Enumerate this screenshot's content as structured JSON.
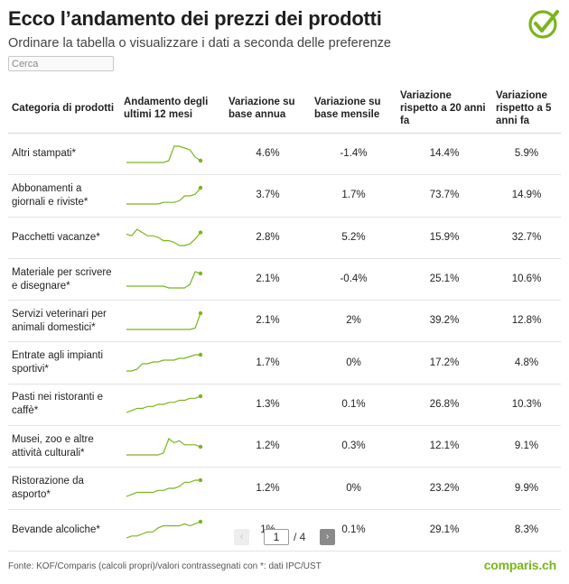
{
  "header": {
    "title": "Ecco l’andamento dei prezzi dei prodotti",
    "subtitle": "Ordinare la tabella o visualizzare i dati a seconda delle preferenze"
  },
  "search": {
    "placeholder": "Cerca",
    "value": ""
  },
  "accent_color": "#7ab51d",
  "logo_icon": "check-circle-icon",
  "table": {
    "columns": [
      "Categoria di prodotti",
      "Andamento degli ultimi 12 mesi",
      "Variazione su base annua",
      "Variazione su base mensile",
      "Variazione rispetto a 20 anni fa",
      "Variazione rispetto a 5 anni fa"
    ],
    "rows": [
      {
        "category": "Altri stampati*",
        "yoy": "4.6%",
        "mom": "-1.4%",
        "y20": "14.4%",
        "y5": "5.9%",
        "trend": [
          10,
          10,
          10,
          10,
          10,
          10,
          10,
          10,
          11,
          19,
          19,
          18,
          17,
          13,
          11
        ]
      },
      {
        "category": "Abbonamenti a giornali e riviste*",
        "yoy": "3.7%",
        "mom": "1.7%",
        "y20": "73.7%",
        "y5": "14.9%",
        "trend": [
          10,
          10,
          10,
          10,
          10,
          10,
          10,
          11,
          11,
          11,
          12,
          15,
          15,
          16,
          20
        ]
      },
      {
        "category": "Pacchetti vacanze*",
        "yoy": "2.8%",
        "mom": "5.2%",
        "y20": "15.9%",
        "y5": "32.7%",
        "trend": [
          16,
          15,
          19,
          17,
          15,
          15,
          14,
          12,
          12,
          11,
          9,
          9,
          10,
          13,
          17
        ]
      },
      {
        "category": "Materiale per scrivere e disegnare*",
        "yoy": "2.1%",
        "mom": "-0.4%",
        "y20": "25.1%",
        "y5": "10.6%",
        "trend": [
          10,
          10,
          10,
          10,
          10,
          10,
          10,
          10,
          9,
          9,
          9,
          9,
          11,
          18,
          17
        ]
      },
      {
        "category": "Servizi veterinari per animali domestici*",
        "yoy": "2.1%",
        "mom": "2%",
        "y20": "39.2%",
        "y5": "12.8%",
        "trend": [
          10,
          10,
          10,
          10,
          10,
          10,
          10,
          10,
          10,
          10,
          10,
          10,
          10,
          11,
          22
        ]
      },
      {
        "category": "Entrate agli impianti sportivi*",
        "yoy": "1.7%",
        "mom": "0%",
        "y20": "17.2%",
        "y5": "4.8%",
        "trend": [
          10,
          10,
          11,
          14,
          14,
          15,
          15,
          16,
          16,
          16,
          17,
          17,
          18,
          19,
          19
        ]
      },
      {
        "category": "Pasti nei ristoranti e caffè*",
        "yoy": "1.3%",
        "mom": "0.1%",
        "y20": "26.8%",
        "y5": "10.3%",
        "trend": [
          10,
          11,
          12,
          12,
          13,
          13,
          14,
          14,
          15,
          15,
          16,
          16,
          17,
          17,
          18
        ]
      },
      {
        "category": "Musei, zoo e altre attività culturali*",
        "yoy": "1.2%",
        "mom": "0.3%",
        "y20": "12.1%",
        "y5": "9.1%",
        "trend": [
          10,
          10,
          10,
          10,
          10,
          10,
          10,
          11,
          18,
          16,
          17,
          15,
          15,
          15,
          14
        ]
      },
      {
        "category": "Ristorazione da asporto*",
        "yoy": "1.2%",
        "mom": "0%",
        "y20": "23.2%",
        "y5": "9.9%",
        "trend": [
          10,
          11,
          12,
          12,
          12,
          12,
          13,
          13,
          14,
          14,
          15,
          17,
          17,
          18,
          18
        ]
      },
      {
        "category": "Bevande alcoliche*",
        "yoy": "1%",
        "mom": "0.1%",
        "y20": "29.1%",
        "y5": "8.3%",
        "trend": [
          10,
          11,
          11,
          12,
          13,
          13,
          15,
          16,
          16,
          16,
          16,
          17,
          16,
          17,
          18
        ]
      }
    ]
  },
  "pagination": {
    "prev_icon": "chevron-left-icon",
    "next_icon": "chevron-right-icon",
    "prev_glyph": "‹",
    "next_glyph": "›",
    "current": "1",
    "total": "/ 4"
  },
  "footer": {
    "source": "Fonte: KOF/Comparis (calcoli propri)/valori contrassegnati con *: dati IPC/UST",
    "brand": "comparis.ch"
  }
}
